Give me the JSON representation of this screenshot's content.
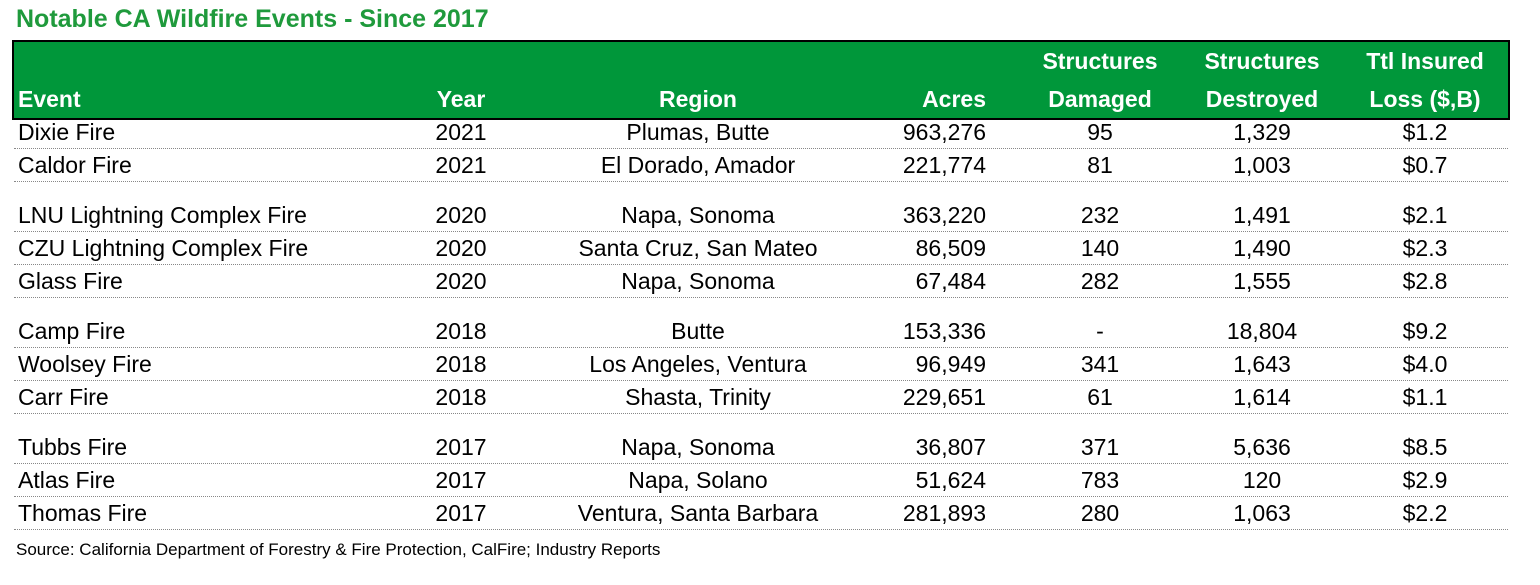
{
  "title": "Notable CA Wildfire Events - Since 2017",
  "table": {
    "columns": [
      [
        "Event"
      ],
      [
        "Year"
      ],
      [
        "Region"
      ],
      [
        "Acres"
      ],
      [
        "Structures",
        "Damaged"
      ],
      [
        "Structures",
        "Destroyed"
      ],
      [
        "Ttl Insured",
        "Loss ($,B)"
      ]
    ],
    "groups": [
      [
        [
          "Dixie Fire",
          "2021",
          "Plumas, Butte",
          "963,276",
          "95",
          "1,329",
          "$1.2"
        ],
        [
          "Caldor Fire",
          "2021",
          "El Dorado, Amador",
          "221,774",
          "81",
          "1,003",
          "$0.7"
        ]
      ],
      [
        [
          "LNU Lightning Complex Fire",
          "2020",
          "Napa, Sonoma",
          "363,220",
          "232",
          "1,491",
          "$2.1"
        ],
        [
          "CZU Lightning Complex Fire",
          "2020",
          "Santa Cruz, San Mateo",
          "86,509",
          "140",
          "1,490",
          "$2.3"
        ],
        [
          "Glass Fire",
          "2020",
          "Napa, Sonoma",
          "67,484",
          "282",
          "1,555",
          "$2.8"
        ]
      ],
      [
        [
          "Camp Fire",
          "2018",
          "Butte",
          "153,336",
          "-",
          "18,804",
          "$9.2"
        ],
        [
          "Woolsey Fire",
          "2018",
          "Los Angeles, Ventura",
          "96,949",
          "341",
          "1,643",
          "$4.0"
        ],
        [
          "Carr Fire",
          "2018",
          "Shasta, Trinity",
          "229,651",
          "61",
          "1,614",
          "$1.1"
        ]
      ],
      [
        [
          "Tubbs Fire",
          "2017",
          "Napa, Sonoma",
          "36,807",
          "371",
          "5,636",
          "$8.5"
        ],
        [
          "Atlas Fire",
          "2017",
          "Napa, Solano",
          "51,624",
          "783",
          "120",
          "$2.9"
        ],
        [
          "Thomas Fire",
          "2017",
          "Ventura, Santa Barbara",
          "281,893",
          "280",
          "1,063",
          "$2.2"
        ]
      ]
    ]
  },
  "source": "Source: California Department of Forestry & Fire Protection, CalFire; Industry Reports"
}
